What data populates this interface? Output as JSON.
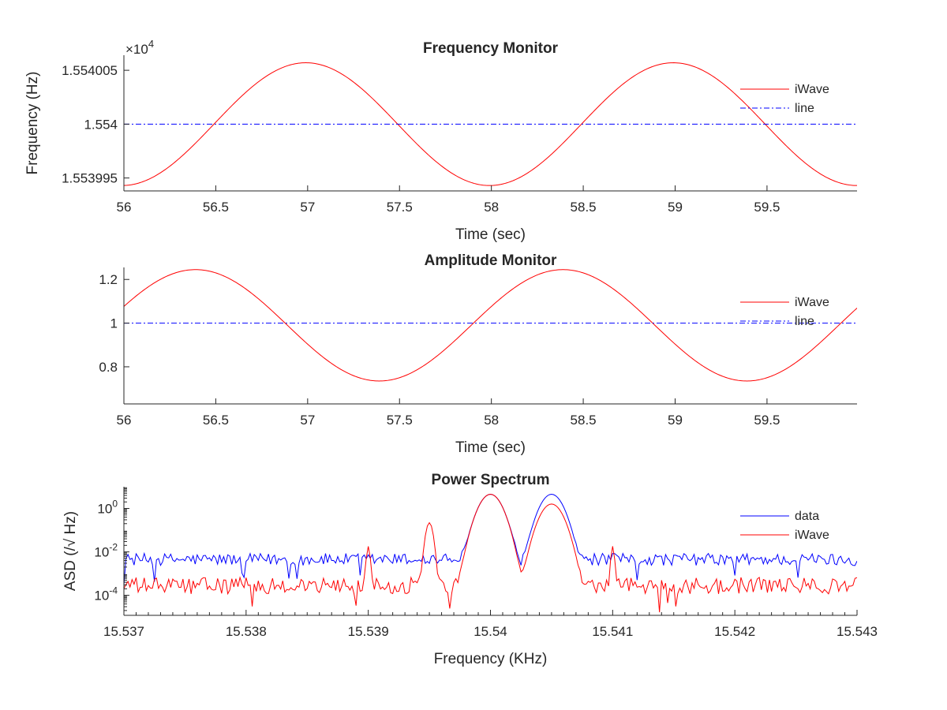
{
  "chart_data": [
    {
      "type": "line",
      "title": "Frequency Monitor",
      "xlabel": "Time (sec)",
      "ylabel": "Frequency (Hz)",
      "exponent_label": "×10",
      "exponent_power": "4",
      "xlim": [
        56,
        59.99
      ],
      "ylim": [
        1.5539938,
        1.5540064
      ],
      "xticks": [
        56,
        56.5,
        57,
        57.5,
        58,
        58.5,
        59,
        59.5
      ],
      "xtick_labels": [
        "56",
        "56.5",
        "57",
        "57.5",
        "58",
        "58.5",
        "59",
        "59.5"
      ],
      "yticks": [
        1.553995,
        1.554,
        1.554005
      ],
      "ytick_labels": [
        "1.553995",
        "1.554",
        "1.554005"
      ],
      "grid": false,
      "legend_position": "top-right",
      "series": [
        {
          "name": "iWave",
          "kind": "sine",
          "offset": 1.554,
          "amplitude": 5.7e-06,
          "period": 2.0,
          "peak_x": 56.99,
          "color": "#ff0000",
          "dash": "solid"
        },
        {
          "name": "line",
          "kind": "constant",
          "value": 1.554,
          "color": "#0000ff",
          "dash": "dashdot"
        }
      ]
    },
    {
      "type": "line",
      "title": "Amplitude Monitor",
      "xlabel": "Time (sec)",
      "ylabel": "",
      "xlim": [
        56,
        59.99
      ],
      "ylim": [
        0.63,
        1.255
      ],
      "xticks": [
        56,
        56.5,
        57,
        57.5,
        58,
        58.5,
        59,
        59.5
      ],
      "xtick_labels": [
        "56",
        "56.5",
        "57",
        "57.5",
        "58",
        "58.5",
        "59",
        "59.5"
      ],
      "yticks": [
        0.8,
        1,
        1.2
      ],
      "ytick_labels": [
        "0.8",
        "1",
        "1.2"
      ],
      "grid": false,
      "legend_position": "top-right",
      "series": [
        {
          "name": "iWave",
          "kind": "sine",
          "offset": 0.99,
          "amplitude": 0.255,
          "period": 2.0,
          "peak_x": 56.39,
          "color": "#ff0000",
          "dash": "solid"
        },
        {
          "name": "line",
          "kind": "constant",
          "value": 1.0,
          "color": "#0000ff",
          "dash": "dashdot"
        }
      ]
    },
    {
      "type": "line",
      "title": "Power Spectrum",
      "xlabel": "Frequency (KHz)",
      "ylabel": "ASD (/√ Hz)",
      "yscale": "log",
      "xlim": [
        15.537,
        15.543
      ],
      "ylim": [
        1.2e-05,
        10
      ],
      "xticks": [
        15.537,
        15.538,
        15.539,
        15.54,
        15.541,
        15.542,
        15.543
      ],
      "xtick_labels": [
        "15.537",
        "15.538",
        "15.539",
        "15.54",
        "15.541",
        "15.542",
        "15.543"
      ],
      "yticks": [
        0.0001,
        0.01,
        1
      ],
      "ytick_labels": [
        {
          "base": "10",
          "exp": "-4"
        },
        {
          "base": "10",
          "exp": "-2"
        },
        {
          "base": "10",
          "exp": "0"
        }
      ],
      "grid": false,
      "legend_position": "top-right",
      "series": [
        {
          "name": "data",
          "color": "#0000ff",
          "noise_floor": 0.0045,
          "noise_spread": 0.28,
          "peaks": [
            {
              "x": 15.54,
              "value": 4.5,
              "width": 6e-05
            },
            {
              "x": 15.5405,
              "value": 4.5,
              "width": 6e-05
            }
          ]
        },
        {
          "name": "iWave",
          "color": "#ff0000",
          "noise_floor": 0.00028,
          "noise_spread": 0.38,
          "peaks": [
            {
              "x": 15.54,
              "value": 4.5,
              "width": 6e-05
            },
            {
              "x": 15.5405,
              "value": 1.6,
              "width": 6e-05
            },
            {
              "x": 15.5395,
              "value": 0.22,
              "width": 2e-05
            },
            {
              "x": 15.539,
              "value": 0.018,
              "width": 1e-05
            },
            {
              "x": 15.541,
              "value": 0.018,
              "width": 1e-05
            }
          ]
        }
      ]
    }
  ]
}
